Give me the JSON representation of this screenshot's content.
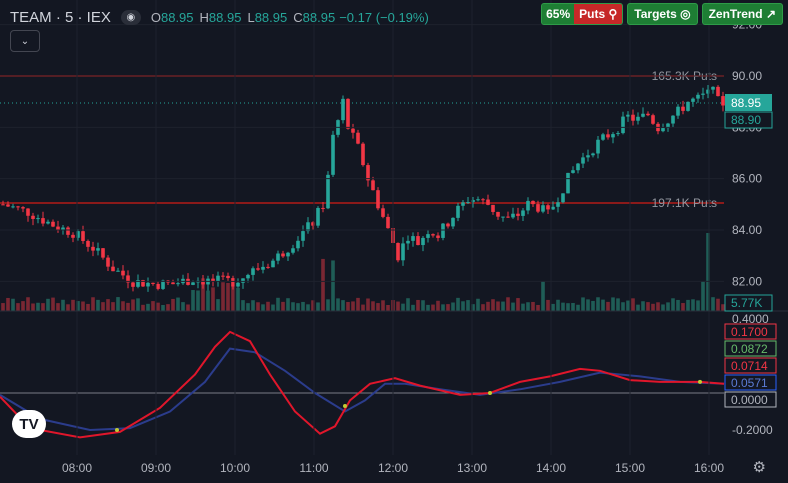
{
  "header": {
    "symbol": "TEAM · 5 · IEX",
    "o_label": "O",
    "o_value": "88.95",
    "h_label": "H",
    "h_value": "88.95",
    "l_label": "L",
    "l_value": "88.95",
    "c_label": "C",
    "c_value": "88.95",
    "change": "−0.17 (−0.19%)"
  },
  "buttons": {
    "puts_pct": "65%",
    "puts_label": "Puts",
    "targets": "Targets",
    "zentrend": "ZenTrend"
  },
  "logo_text": "TV",
  "colors": {
    "up": "#26a69a",
    "down": "#f23645",
    "macd": "#2962ff",
    "signal": "#ff0000",
    "level": "#8b1a1a",
    "background": "#131722"
  },
  "chart_data": {
    "type": "candlestick",
    "price_axis": {
      "ylim": [
        80.7,
        92.0
      ],
      "ticks": [
        "82.00",
        "84.00",
        "86.00",
        "88.00",
        "90.00",
        "92.00"
      ],
      "last_price": "88.95",
      "second_price": "88.90",
      "volume_label": "5.77K"
    },
    "time_axis": {
      "ticks": [
        "08:00",
        "09:00",
        "10:00",
        "11:00",
        "12:00",
        "13:00",
        "14:00",
        "15:00",
        "16:00"
      ]
    },
    "levels": [
      {
        "price": 90.0,
        "label": "165.3K Puts"
      },
      {
        "price": 85.05,
        "label": "197.1K Puts"
      }
    ],
    "macd": {
      "ylim": [
        -0.26,
        0.42
      ],
      "ticks": [
        "0.4000",
        "-0.2000"
      ],
      "value_labels": [
        "0.1700",
        "0.0872",
        "0.0714",
        "0.0571",
        "0.0000"
      ]
    }
  }
}
